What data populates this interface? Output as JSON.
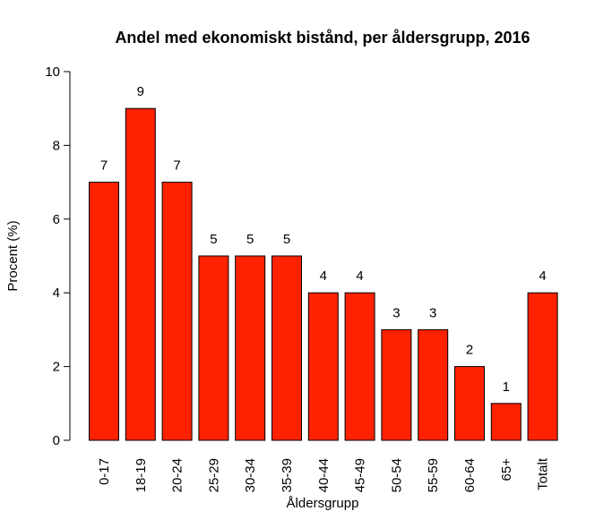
{
  "chart_data": {
    "type": "bar",
    "title": "Andel med ekonomiskt bistånd, per åldersgrupp, 2016",
    "xlabel": "Åldersgrupp",
    "ylabel": "Procent (%)",
    "categories": [
      "0-17",
      "18-19",
      "20-24",
      "25-29",
      "30-34",
      "35-39",
      "40-44",
      "45-49",
      "50-54",
      "55-59",
      "60-64",
      "65+",
      "Totalt"
    ],
    "values": [
      7,
      9,
      7,
      5,
      5,
      5,
      4,
      4,
      3,
      3,
      2,
      1,
      4
    ],
    "data_labels": [
      "7",
      "9",
      "7",
      "5",
      "5",
      "5",
      "4",
      "4",
      "3",
      "3",
      "2",
      "1",
      "4"
    ],
    "ylim": [
      0,
      10
    ],
    "yticks": [
      0,
      2,
      4,
      6,
      8,
      10
    ],
    "bar_color": "#ff2200",
    "grid": false,
    "legend": "none"
  }
}
